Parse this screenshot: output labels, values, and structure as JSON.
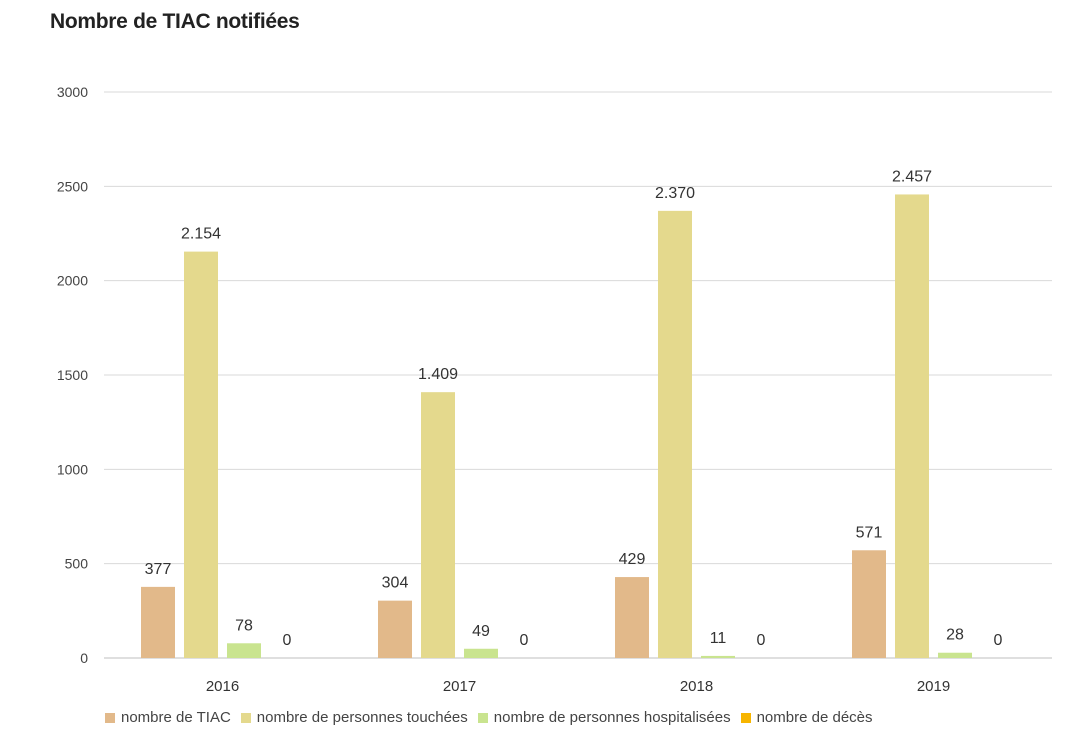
{
  "title": "Nombre de TIAC notifiées",
  "chart_data": {
    "type": "bar",
    "title": "Nombre de TIAC notifiées",
    "xlabel": "",
    "ylabel": "",
    "ylim": [
      0,
      3000
    ],
    "yticks": [
      0,
      500,
      1000,
      1500,
      2000,
      2500,
      3000
    ],
    "grid": true,
    "legend_position": "bottom",
    "categories": [
      "2016",
      "2017",
      "2018",
      "2019"
    ],
    "series": [
      {
        "name": "nombre de TIAC",
        "color": "#e2b98a",
        "values": [
          377,
          304,
          429,
          571
        ],
        "labels": [
          "377",
          "304",
          "429",
          "571"
        ]
      },
      {
        "name": "nombre de personnes touchées",
        "color": "#e4d98d",
        "values": [
          2154,
          1409,
          2370,
          2457
        ],
        "labels": [
          "2.154",
          "1.409",
          "2.370",
          "2.457"
        ]
      },
      {
        "name": "nombre de personnes hospitalisées",
        "color": "#c9e48f",
        "values": [
          78,
          49,
          11,
          28
        ],
        "labels": [
          "78",
          "49",
          "11",
          "28"
        ]
      },
      {
        "name": "nombre de décès",
        "color": "#f7b500",
        "values": [
          0,
          0,
          0,
          0
        ],
        "labels": [
          "0",
          "0",
          "0",
          "0"
        ]
      }
    ]
  }
}
